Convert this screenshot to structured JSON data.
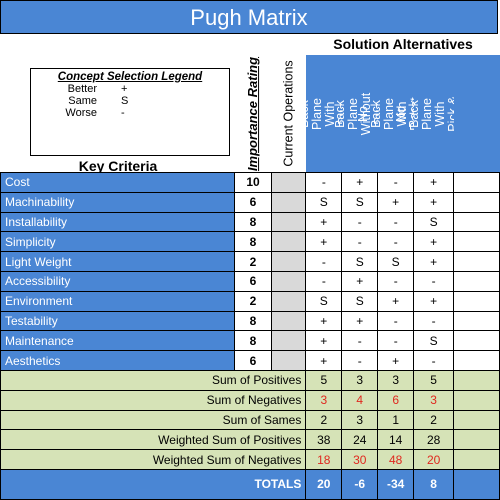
{
  "title": "Pugh Matrix",
  "solution_alternatives": "Solution Alternatives",
  "legend": {
    "title": "Concept Selection Legend",
    "rows": [
      {
        "label": "Better",
        "symbol": "+"
      },
      {
        "label": "Same",
        "symbol": "S"
      },
      {
        "label": "Worse",
        "symbol": "-"
      }
    ]
  },
  "key_criteria": "Key Criteria",
  "importance_header": "Importance Rating",
  "current_header": "Current Operations",
  "alternatives": [
    "Back Plane With Bus",
    "Back Plane Without Bus",
    "No Back Plane With Robot Arm",
    "No Back Plane With Pick & Place"
  ],
  "criteria": [
    {
      "name": "Cost",
      "importance": "10",
      "scores": [
        "-",
        "+",
        "-",
        "+"
      ]
    },
    {
      "name": "Machinability",
      "importance": "6",
      "scores": [
        "S",
        "S",
        "+",
        "+"
      ]
    },
    {
      "name": "Installability",
      "importance": "8",
      "scores": [
        "+",
        "-",
        "-",
        "S"
      ]
    },
    {
      "name": "Simplicity",
      "importance": "8",
      "scores": [
        "+",
        "-",
        "-",
        "+"
      ]
    },
    {
      "name": "Light Weight",
      "importance": "2",
      "scores": [
        "-",
        "S",
        "S",
        "+"
      ]
    },
    {
      "name": "Accessibility",
      "importance": "6",
      "scores": [
        "-",
        "+",
        "-",
        "-"
      ]
    },
    {
      "name": "Environment",
      "importance": "2",
      "scores": [
        "S",
        "S",
        "+",
        "+"
      ]
    },
    {
      "name": "Testability",
      "importance": "8",
      "scores": [
        "+",
        "+",
        "-",
        "-"
      ]
    },
    {
      "name": "Maintenance",
      "importance": "8",
      "scores": [
        "+",
        "-",
        "-",
        "S"
      ]
    },
    {
      "name": "Aesthetics",
      "importance": "6",
      "scores": [
        "+",
        "-",
        "+",
        "-"
      ]
    }
  ],
  "summary": [
    {
      "label": "Sum of Positives",
      "values": [
        "5",
        "3",
        "3",
        "5"
      ],
      "red": false
    },
    {
      "label": "Sum of Negatives",
      "values": [
        "3",
        "4",
        "6",
        "3"
      ],
      "red": true
    },
    {
      "label": "Sum of Sames",
      "values": [
        "2",
        "3",
        "1",
        "2"
      ],
      "red": false
    },
    {
      "label": "Weighted Sum of Positives",
      "values": [
        "38",
        "24",
        "14",
        "28"
      ],
      "red": false
    },
    {
      "label": "Weighted Sum of Negatives",
      "values": [
        "18",
        "30",
        "48",
        "20"
      ],
      "red": true
    }
  ],
  "totals": {
    "label": "TOTALS",
    "values": [
      "20",
      "-6",
      "-34",
      "8"
    ]
  },
  "colors": {
    "header_blue": "#4a86d4",
    "summary_green": "#d6e3b7",
    "negative_red": "#e0281f",
    "current_gray": "#d9d9d9"
  }
}
